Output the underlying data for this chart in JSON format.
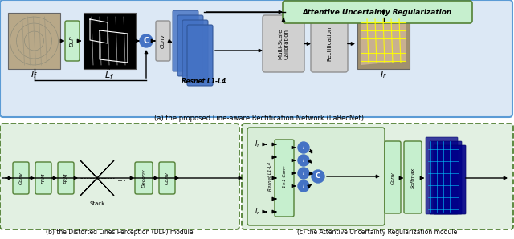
{
  "caption_a": "(a) the proposed Line-aware Rectification Network (LaRecNet)",
  "caption_b": "(b) the Distorted Lines Perception (DLP) module",
  "caption_c": "(c) the Attentive Uncertainty Regularization module",
  "label_If": "$I_f$",
  "label_Lf": "$\\hat{L}_f$",
  "label_Ir": "$I_r$",
  "label_DLP": "DLP",
  "label_Conv": "Conv",
  "label_Multi": "Multi-Scale\nCalibration",
  "label_Rect": "Rectification",
  "label_Resnet": "Resnet L1-L4",
  "label_AUR": "Attentive Uncertainty Regularization",
  "label_Softmax": "Softmax",
  "label_11conv": "1×1 Conv",
  "label_Resnet2": "Resnet L1-L4",
  "label_If2": "$I_f$",
  "label_Ir2": "$I_r$",
  "label_Stack": "Stack",
  "label_Deconv": "Deconv",
  "label_PRM": "PRM",
  "top_bg": "#dce8f5",
  "top_border": "#5b9bd5",
  "green_fill": "#c6efce",
  "green_border": "#538135",
  "gray_fill": "#d0d0d0",
  "gray_border": "#909090",
  "blue_fill": "#4472c4",
  "blue_border": "#2f5496",
  "aur_fill": "#c6efce",
  "aur_border": "#538135",
  "dlp_panel_fill": "#e2f0e2",
  "aur_panel_fill": "#e2f0e2"
}
